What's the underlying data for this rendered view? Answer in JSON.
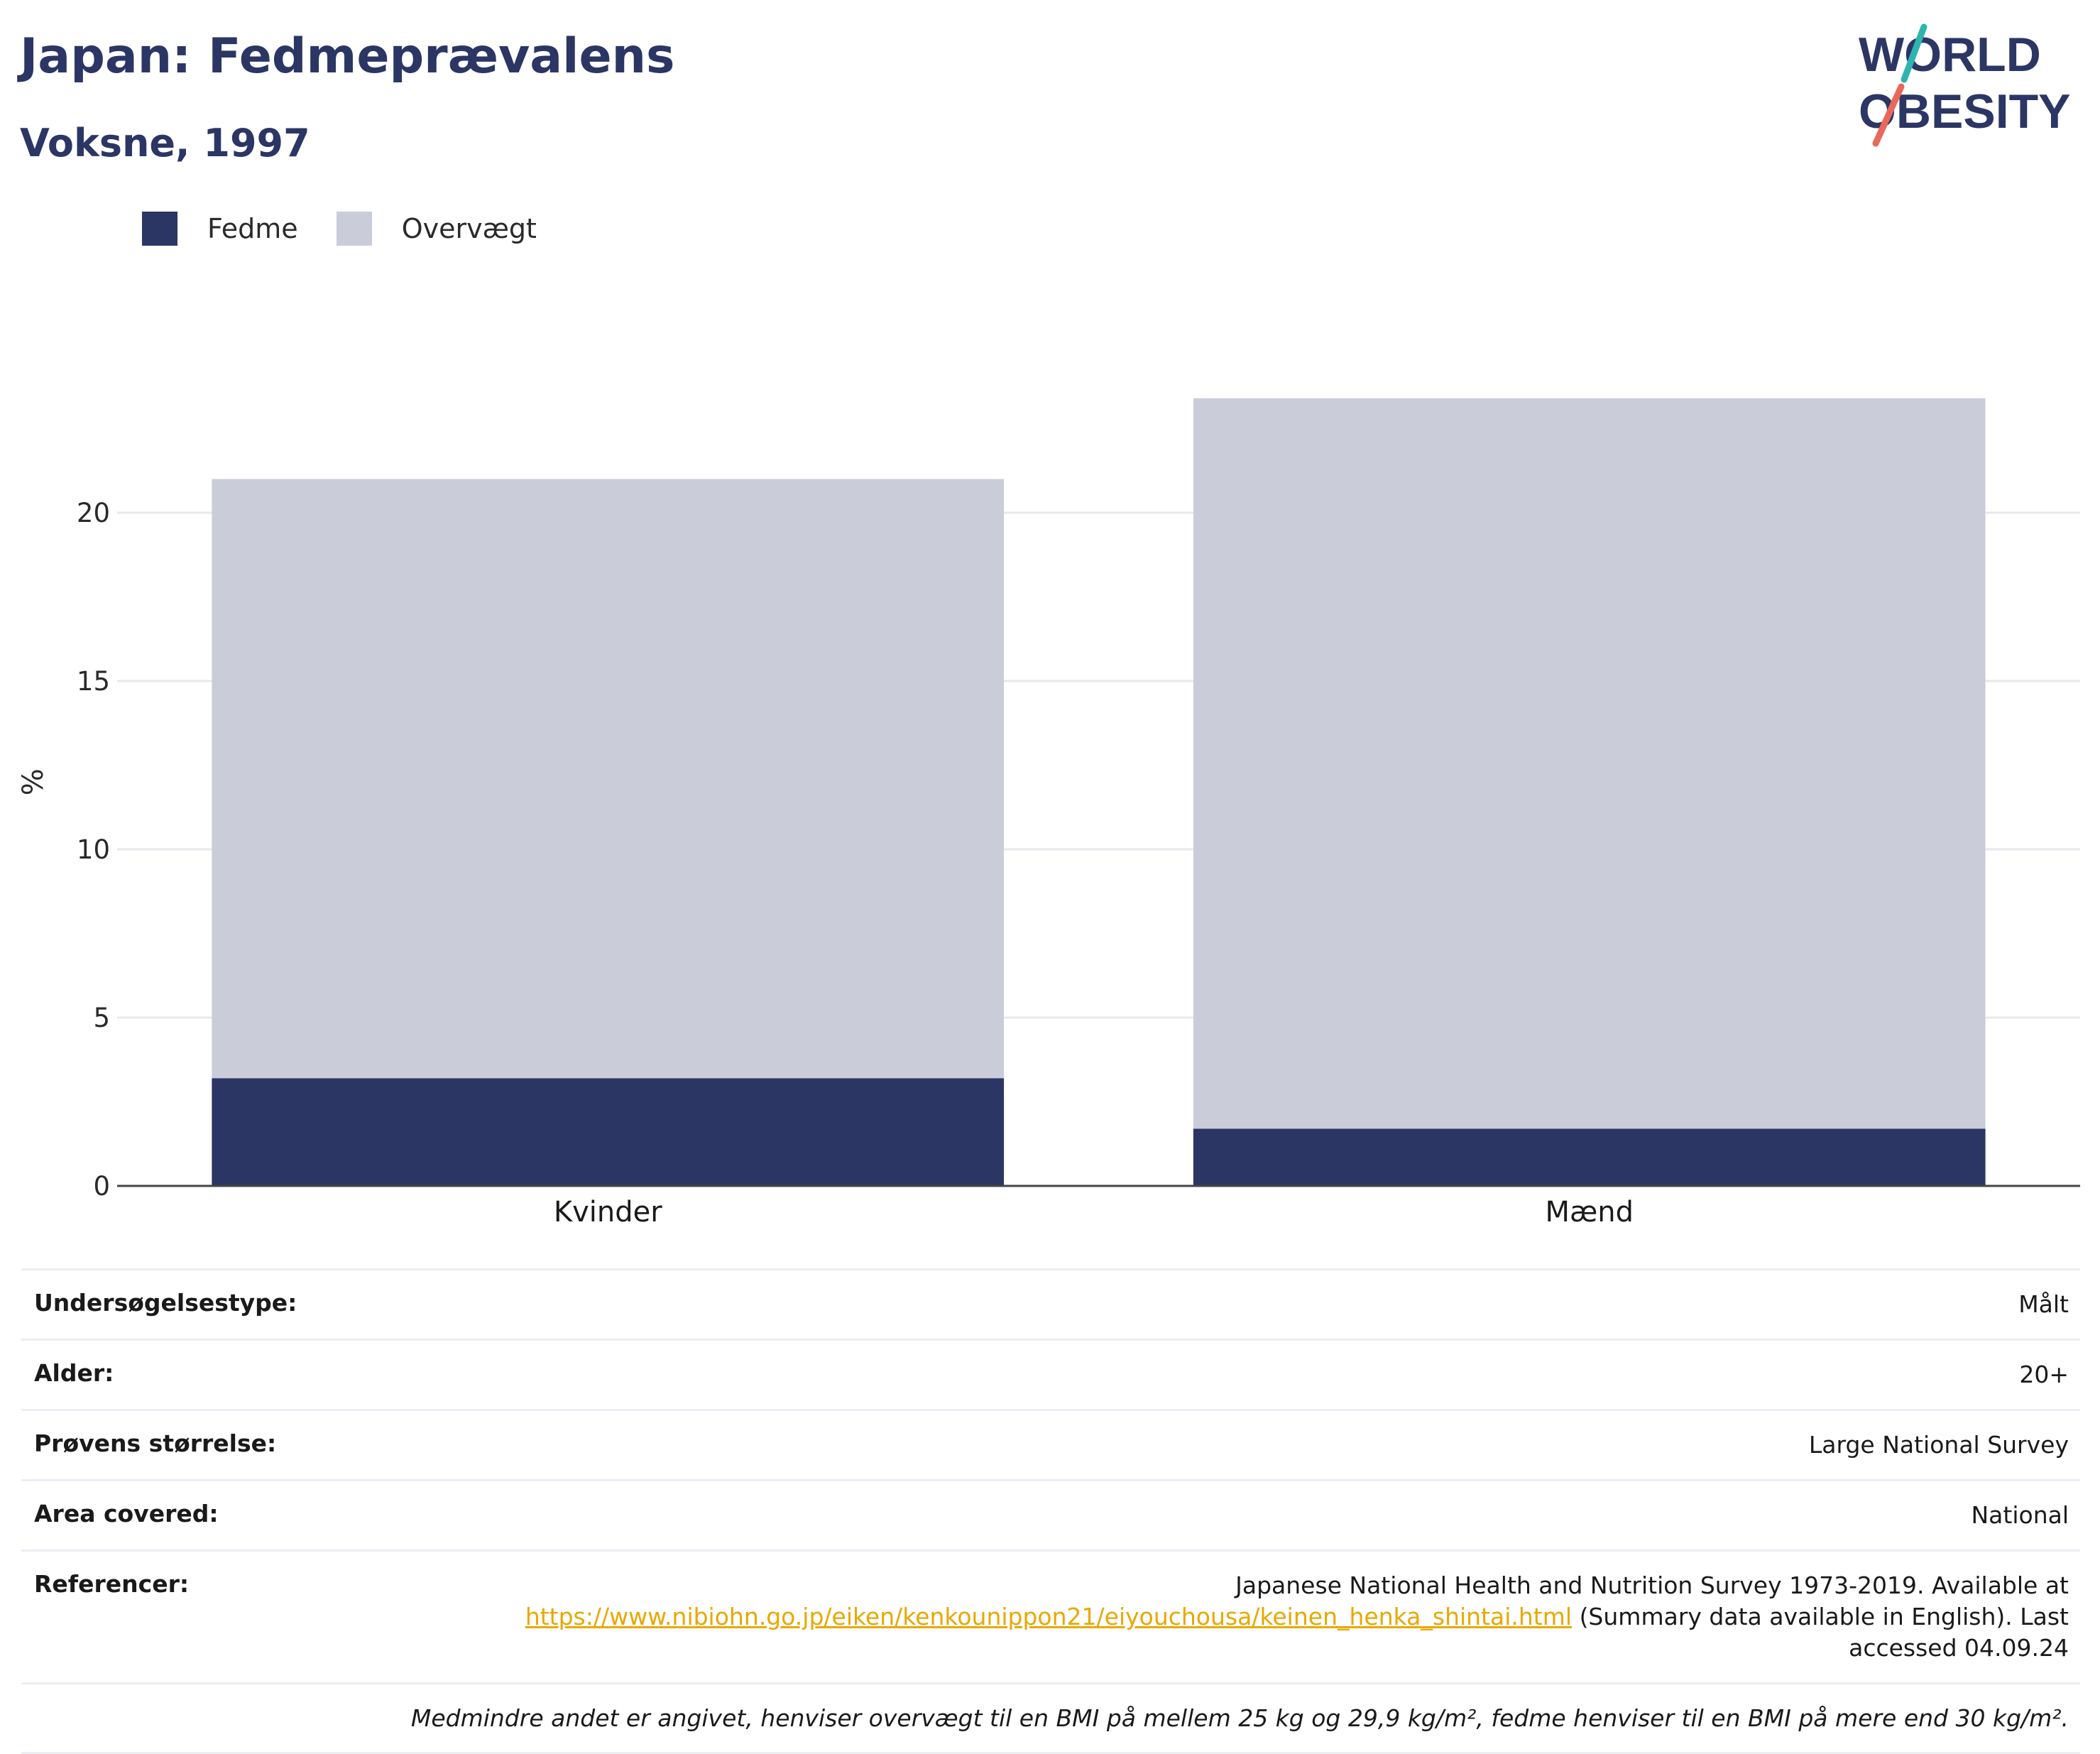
{
  "header": {
    "title": "Japan: Fedmeprævalens",
    "subtitle": "Voksne, 1997"
  },
  "logo": {
    "line1": "WORLD",
    "line2": "OBESITY"
  },
  "legend": [
    {
      "label": "Fedme",
      "color": "#2b3664"
    },
    {
      "label": "Overvægt",
      "color": "#cacdd9"
    }
  ],
  "chart_data": {
    "type": "bar",
    "stacked": true,
    "categories": [
      "Kvinder",
      "Mænd"
    ],
    "series": [
      {
        "name": "Fedme",
        "color": "#2b3664",
        "values": [
          3.2,
          1.7
        ]
      },
      {
        "name": "Overvægt",
        "color": "#cacdd9",
        "values": [
          17.8,
          21.7
        ]
      }
    ],
    "ylabel": "%",
    "yticks": [
      0,
      5,
      10,
      15,
      20
    ],
    "ylim": [
      0,
      24
    ],
    "grid": true,
    "legend_position": "top-left"
  },
  "info": {
    "rows": [
      {
        "key": "Undersøgelsestype:",
        "value": "Målt"
      },
      {
        "key": "Alder:",
        "value": "20+"
      },
      {
        "key": "Prøvens størrelse:",
        "value": "Large National Survey"
      },
      {
        "key": "Area covered:",
        "value": "National"
      }
    ],
    "references": {
      "key": "Referencer:",
      "text_before": "Japanese National Health and Nutrition Survey 1973-2019. Available at",
      "link": "https://www.nibiohn.go.jp/eiken/kenkounippon21/eiyouchousa/keinen_henka_shintai.html",
      "text_after": "(Summary data available in English). Last accessed 04.09.24"
    },
    "note": "Medmindre andet er angivet, henviser overvægt til en BMI på mellem 25 kg og 29,9 kg/m², fedme henviser til en BMI på mere end 30 kg/m²."
  }
}
